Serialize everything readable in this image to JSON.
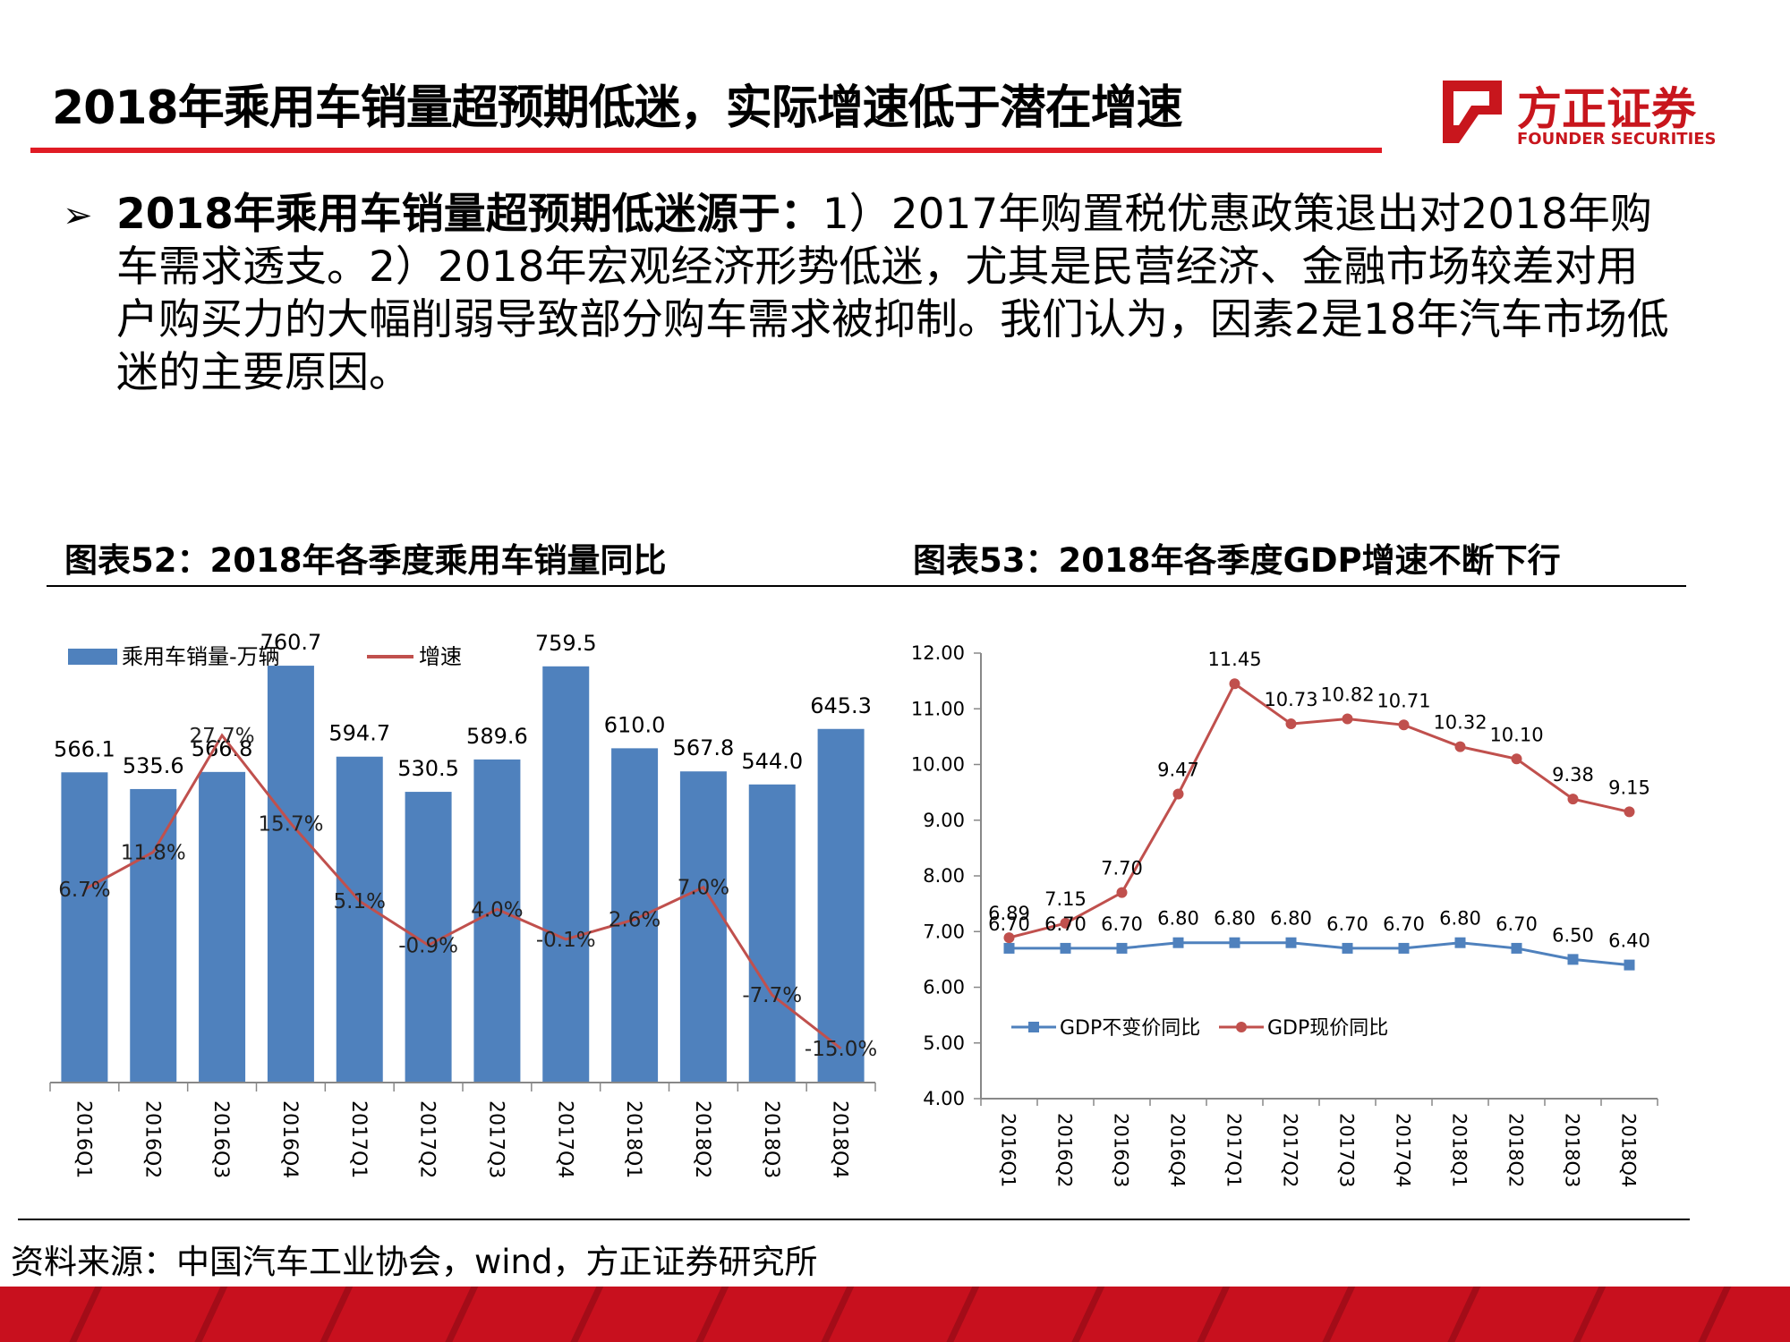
{
  "header": {
    "title": "2018年乘用车销量超预期低迷，实际增速低于潜在增速",
    "logo_name": "方正证券",
    "logo_english": "FOUNDER SECURITIES",
    "accent_color": "#e01b24"
  },
  "body": {
    "bullet_symbol": "➢",
    "bold_lead": "2018年乘用车销量超预期低迷源于：",
    "text": "1）2017年购置税优惠政策退出对2018年购车需求透支。2）2018年宏观经济形势低迷，尤其是民营经济、金融市场较差对用户购买力的大幅削弱导致部分购车需求被抑制。我们认为，因素2是18年汽车市场低迷的主要原因。"
  },
  "chart_captions": {
    "left": "图表52：2018年各季度乘用车销量同比",
    "right": "图表53：2018年各季度GDP增速不断下行"
  },
  "chart_data": [
    {
      "type": "bar",
      "categories": [
        "2016Q1",
        "2016Q2",
        "2016Q3",
        "2016Q4",
        "2017Q1",
        "2017Q2",
        "2017Q3",
        "2017Q4",
        "2018Q1",
        "2018Q2",
        "2018Q3",
        "2018Q4"
      ],
      "series": [
        {
          "name": "乘用车销量-万辆",
          "kind": "bar",
          "color": "#4f81bd",
          "values": [
            566.1,
            535.6,
            566.8,
            760.7,
            594.7,
            530.5,
            589.6,
            759.5,
            610.0,
            567.8,
            544.0,
            645.3
          ],
          "labels": [
            "566.1",
            "535.6",
            "566.8",
            "760.7",
            "594.7",
            "530.5",
            "589.6",
            "759.5",
            "610.0",
            "567.8",
            "544.0",
            "645.3"
          ]
        },
        {
          "name": "增速",
          "kind": "line",
          "color": "#c0504d",
          "unit": "%",
          "values": [
            6.7,
            11.8,
            27.7,
            15.7,
            5.1,
            -0.9,
            4.0,
            -0.1,
            2.6,
            7.0,
            -7.7,
            -15.0
          ],
          "labels": [
            "6.7%",
            "11.8%",
            "27.7%",
            "15.7%",
            "5.1%",
            "-0.9%",
            "4.0%",
            "-0.1%",
            "2.6%",
            "7.0%",
            "-7.7%",
            "-15.0%"
          ]
        }
      ],
      "legend": "top-left",
      "grid": false
    },
    {
      "type": "line",
      "categories": [
        "2016Q1",
        "2016Q2",
        "2016Q3",
        "2016Q4",
        "2017Q1",
        "2017Q2",
        "2017Q3",
        "2017Q4",
        "2018Q1",
        "2018Q2",
        "2018Q3",
        "2018Q4"
      ],
      "series": [
        {
          "name": "GDP不变价同比",
          "color": "#4f81bd",
          "values": [
            6.7,
            6.7,
            6.7,
            6.8,
            6.8,
            6.8,
            6.7,
            6.7,
            6.8,
            6.7,
            6.5,
            6.4
          ],
          "labels": [
            "6.70",
            "6.70",
            "6.70",
            "6.80",
            "6.80",
            "6.80",
            "6.70",
            "6.70",
            "6.80",
            "6.70",
            "6.50",
            "6.40"
          ]
        },
        {
          "name": "GDP现价同比",
          "color": "#c0504d",
          "values": [
            6.89,
            7.15,
            7.7,
            9.47,
            11.45,
            10.73,
            10.82,
            10.71,
            10.32,
            10.1,
            9.38,
            9.15
          ],
          "labels": [
            "6.89",
            "7.15",
            "7.70",
            "9.47",
            "11.45",
            "10.73",
            "10.82",
            "10.71",
            "10.32",
            "10.10",
            "9.38",
            "9.15"
          ]
        }
      ],
      "yticks": [
        "4.00",
        "5.00",
        "6.00",
        "7.00",
        "8.00",
        "9.00",
        "10.00",
        "11.00",
        "12.00"
      ],
      "ylim": [
        4,
        12
      ],
      "legend": "bottom-left",
      "grid": false
    }
  ],
  "source": "资料来源：中国汽车工业协会，wind，方正证券研究所",
  "footer_color": "#c8101e"
}
